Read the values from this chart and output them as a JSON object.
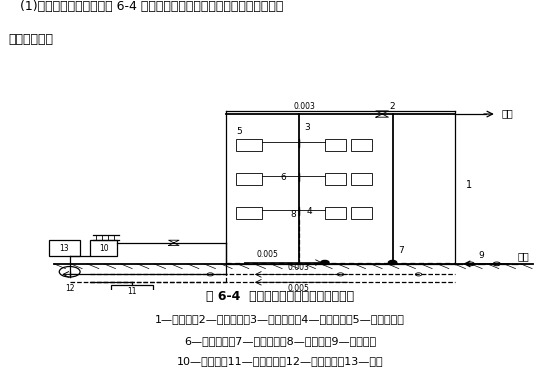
{
  "bg_color": "#ffffff",
  "title_line1": "(1)低压蒸汽采暖系统。图 6-4 为一完整的上分式低压蒸汽采暖系统的组成",
  "title_line2": "形式示意图。",
  "fig_caption": "图 6-4  上分式低压蒸汽采暖系统示意图",
  "legend1": "1—总立管；2—蒸汽干管；3—蒸汽立管；4—蒸汽支管；5—凝水支管；",
  "legend2": "6—凝水立管；7—凝水干管；8—调节阀；9—疏水器；",
  "legend3": "10—分汽缸；11—凝结水筱；12—凝结水泵；13—锅炉",
  "steam_label": "蒸汽",
  "condensate_label": "凝水",
  "slope1": "0.003",
  "slope2": "0.005",
  "slope3": "0.003",
  "slope4": "0.005"
}
